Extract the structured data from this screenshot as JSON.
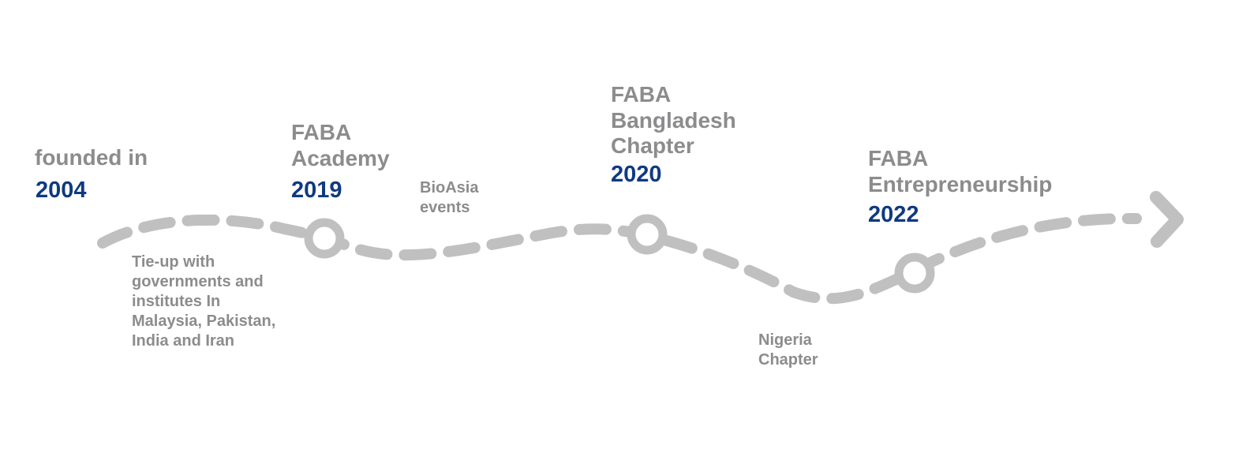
{
  "milestones": [
    {
      "title": "founded in",
      "year": "2004"
    },
    {
      "title": "FABA\nAcademy",
      "year": "2019"
    },
    {
      "title": "FABA\nBangladesh\nChapter",
      "year": "2020"
    },
    {
      "title": "FABA\nEntrepreneurship",
      "year": "2022"
    }
  ],
  "notes": [
    {
      "text": "Tie-up with\ngovernments and\ninstitutes In\nMalaysia, Pakistan,\nIndia and Iran"
    },
    {
      "text": "BioAsia\nevents"
    },
    {
      "text": "Nigeria\nChapter"
    }
  ],
  "colors": {
    "path": "#c0c0c0",
    "title_text": "#8c8c8e",
    "year_text": "#0f3a80"
  },
  "icons": {
    "path_end": "arrow-head-icon",
    "milestone_marker": "ring-marker-icon"
  }
}
